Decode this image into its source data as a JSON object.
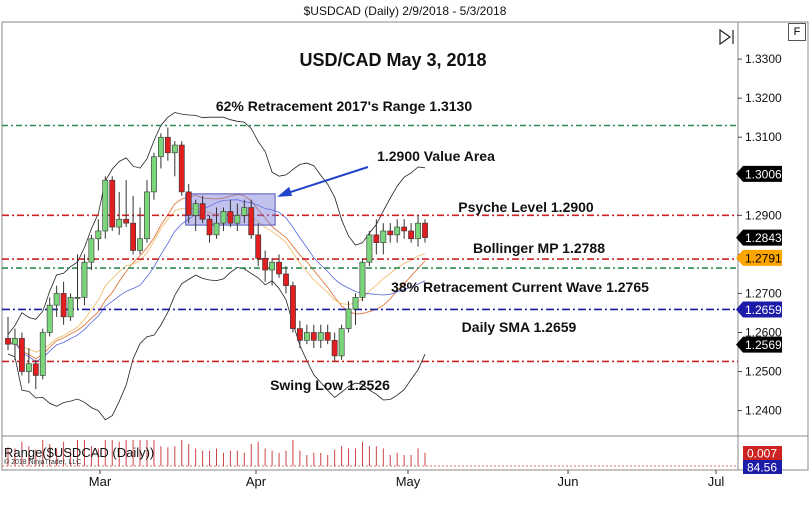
{
  "window": {
    "title": "$USDCAD (Daily)  2/9/2018 - 5/3/2018"
  },
  "buttons": {
    "f_label": "F"
  },
  "chart_data": {
    "type": "candlestick",
    "title": "USD/CAD May 3, 2018",
    "x_ticks": [
      "Mar",
      "Apr",
      "May",
      "Jun",
      "Jul"
    ],
    "y_ticks": [
      "1.3300",
      "1.3200",
      "1.3100",
      "1.2900",
      "1.2800",
      "1.2700",
      "1.2600",
      "1.2500",
      "1.2400"
    ],
    "ylim": [
      1.2335,
      1.3395
    ],
    "price_tags": [
      {
        "label": "1.3006",
        "value": 1.3006,
        "bg": "#000000",
        "fg": "#ffffff"
      },
      {
        "label": "1.2843",
        "value": 1.2843,
        "bg": "#000000",
        "fg": "#ffffff"
      },
      {
        "label": "1.2791",
        "value": 1.2791,
        "bg": "#ffa500",
        "fg": "#000000"
      },
      {
        "label": "1.2659",
        "value": 1.2659,
        "bg": "#1c1ca8",
        "fg": "#ffffff"
      },
      {
        "label": "1.2569",
        "value": 1.2569,
        "bg": "#000000",
        "fg": "#ffffff"
      }
    ],
    "horizontal_lines": [
      {
        "value": 1.313,
        "color": "#2e8b57",
        "label": "62% Retracement 2017's Range 1.3130"
      },
      {
        "value": 1.29,
        "color": "#cc2222",
        "label": "Psyche Level 1.2900"
      },
      {
        "value": 1.2788,
        "color": "#cc2222",
        "label": "Bollinger MP 1.2788"
      },
      {
        "value": 1.2765,
        "color": "#2e8b57",
        "label": "38% Retracement Current Wave 1.2765"
      },
      {
        "value": 1.2659,
        "color": "#1c1ca8",
        "label": "Daily SMA 1.2659"
      },
      {
        "value": 1.2526,
        "color": "#cc2222",
        "label": "Swing Low 1.2526"
      }
    ],
    "annotations": {
      "value_area": "1.2900 Value Area"
    },
    "candles": [
      {
        "o": 1.2585,
        "h": 1.264,
        "l": 1.2555,
        "c": 1.257
      },
      {
        "o": 1.257,
        "h": 1.261,
        "l": 1.253,
        "c": 1.2585
      },
      {
        "o": 1.2585,
        "h": 1.26,
        "l": 1.249,
        "c": 1.25
      },
      {
        "o": 1.25,
        "h": 1.256,
        "l": 1.247,
        "c": 1.252
      },
      {
        "o": 1.252,
        "h": 1.253,
        "l": 1.2455,
        "c": 1.249
      },
      {
        "o": 1.249,
        "h": 1.261,
        "l": 1.248,
        "c": 1.26
      },
      {
        "o": 1.26,
        "h": 1.269,
        "l": 1.259,
        "c": 1.267
      },
      {
        "o": 1.267,
        "h": 1.272,
        "l": 1.264,
        "c": 1.27
      },
      {
        "o": 1.27,
        "h": 1.273,
        "l": 1.262,
        "c": 1.264
      },
      {
        "o": 1.264,
        "h": 1.27,
        "l": 1.263,
        "c": 1.269
      },
      {
        "o": 1.269,
        "h": 1.28,
        "l": 1.266,
        "c": 1.269
      },
      {
        "o": 1.269,
        "h": 1.28,
        "l": 1.267,
        "c": 1.278
      },
      {
        "o": 1.278,
        "h": 1.285,
        "l": 1.276,
        "c": 1.284
      },
      {
        "o": 1.284,
        "h": 1.289,
        "l": 1.281,
        "c": 1.286
      },
      {
        "o": 1.286,
        "h": 1.3,
        "l": 1.284,
        "c": 1.299
      },
      {
        "o": 1.299,
        "h": 1.3,
        "l": 1.286,
        "c": 1.287
      },
      {
        "o": 1.287,
        "h": 1.296,
        "l": 1.285,
        "c": 1.289
      },
      {
        "o": 1.289,
        "h": 1.299,
        "l": 1.287,
        "c": 1.288
      },
      {
        "o": 1.288,
        "h": 1.295,
        "l": 1.28,
        "c": 1.281
      },
      {
        "o": 1.281,
        "h": 1.292,
        "l": 1.28,
        "c": 1.284
      },
      {
        "o": 1.284,
        "h": 1.299,
        "l": 1.283,
        "c": 1.296
      },
      {
        "o": 1.296,
        "h": 1.306,
        "l": 1.294,
        "c": 1.305
      },
      {
        "o": 1.305,
        "h": 1.311,
        "l": 1.302,
        "c": 1.31
      },
      {
        "o": 1.31,
        "h": 1.3125,
        "l": 1.304,
        "c": 1.306
      },
      {
        "o": 1.306,
        "h": 1.309,
        "l": 1.3,
        "c": 1.308
      },
      {
        "o": 1.308,
        "h": 1.309,
        "l": 1.295,
        "c": 1.296
      },
      {
        "o": 1.296,
        "h": 1.298,
        "l": 1.288,
        "c": 1.29
      },
      {
        "o": 1.29,
        "h": 1.294,
        "l": 1.286,
        "c": 1.293
      },
      {
        "o": 1.293,
        "h": 1.295,
        "l": 1.288,
        "c": 1.289
      },
      {
        "o": 1.289,
        "h": 1.29,
        "l": 1.283,
        "c": 1.285
      },
      {
        "o": 1.285,
        "h": 1.292,
        "l": 1.284,
        "c": 1.288
      },
      {
        "o": 1.288,
        "h": 1.292,
        "l": 1.286,
        "c": 1.291
      },
      {
        "o": 1.291,
        "h": 1.294,
        "l": 1.287,
        "c": 1.288
      },
      {
        "o": 1.288,
        "h": 1.293,
        "l": 1.286,
        "c": 1.29
      },
      {
        "o": 1.29,
        "h": 1.294,
        "l": 1.288,
        "c": 1.292
      },
      {
        "o": 1.292,
        "h": 1.294,
        "l": 1.284,
        "c": 1.285
      },
      {
        "o": 1.285,
        "h": 1.288,
        "l": 1.277,
        "c": 1.279
      },
      {
        "o": 1.279,
        "h": 1.281,
        "l": 1.273,
        "c": 1.276
      },
      {
        "o": 1.276,
        "h": 1.279,
        "l": 1.272,
        "c": 1.278
      },
      {
        "o": 1.278,
        "h": 1.28,
        "l": 1.274,
        "c": 1.275
      },
      {
        "o": 1.275,
        "h": 1.277,
        "l": 1.27,
        "c": 1.272
      },
      {
        "o": 1.272,
        "h": 1.273,
        "l": 1.26,
        "c": 1.261
      },
      {
        "o": 1.261,
        "h": 1.263,
        "l": 1.256,
        "c": 1.258
      },
      {
        "o": 1.258,
        "h": 1.262,
        "l": 1.257,
        "c": 1.26
      },
      {
        "o": 1.26,
        "h": 1.262,
        "l": 1.256,
        "c": 1.258
      },
      {
        "o": 1.258,
        "h": 1.262,
        "l": 1.256,
        "c": 1.26
      },
      {
        "o": 1.26,
        "h": 1.262,
        "l": 1.257,
        "c": 1.258
      },
      {
        "o": 1.258,
        "h": 1.26,
        "l": 1.2526,
        "c": 1.254
      },
      {
        "o": 1.254,
        "h": 1.262,
        "l": 1.253,
        "c": 1.261
      },
      {
        "o": 1.261,
        "h": 1.268,
        "l": 1.26,
        "c": 1.266
      },
      {
        "o": 1.266,
        "h": 1.27,
        "l": 1.262,
        "c": 1.269
      },
      {
        "o": 1.269,
        "h": 1.279,
        "l": 1.268,
        "c": 1.278
      },
      {
        "o": 1.278,
        "h": 1.286,
        "l": 1.277,
        "c": 1.285
      },
      {
        "o": 1.285,
        "h": 1.289,
        "l": 1.28,
        "c": 1.283
      },
      {
        "o": 1.283,
        "h": 1.288,
        "l": 1.28,
        "c": 1.286
      },
      {
        "o": 1.286,
        "h": 1.288,
        "l": 1.283,
        "c": 1.285
      },
      {
        "o": 1.285,
        "h": 1.289,
        "l": 1.283,
        "c": 1.287
      },
      {
        "o": 1.287,
        "h": 1.289,
        "l": 1.284,
        "c": 1.286
      },
      {
        "o": 1.286,
        "h": 1.288,
        "l": 1.283,
        "c": 1.284
      },
      {
        "o": 1.284,
        "h": 1.29,
        "l": 1.282,
        "c": 1.288
      },
      {
        "o": 1.288,
        "h": 1.289,
        "l": 1.283,
        "c": 1.2843
      }
    ],
    "indicator": {
      "label": "Range($USDCAD (Daily))",
      "copyright": "© 2018 NinjaTrader, LLC",
      "tags": [
        {
          "label": "0.007",
          "bg": "#cc2222",
          "fg": "#ffffff"
        },
        {
          "label": "84.56",
          "bg": "#1c1ca8",
          "fg": "#ffffff"
        }
      ]
    }
  }
}
